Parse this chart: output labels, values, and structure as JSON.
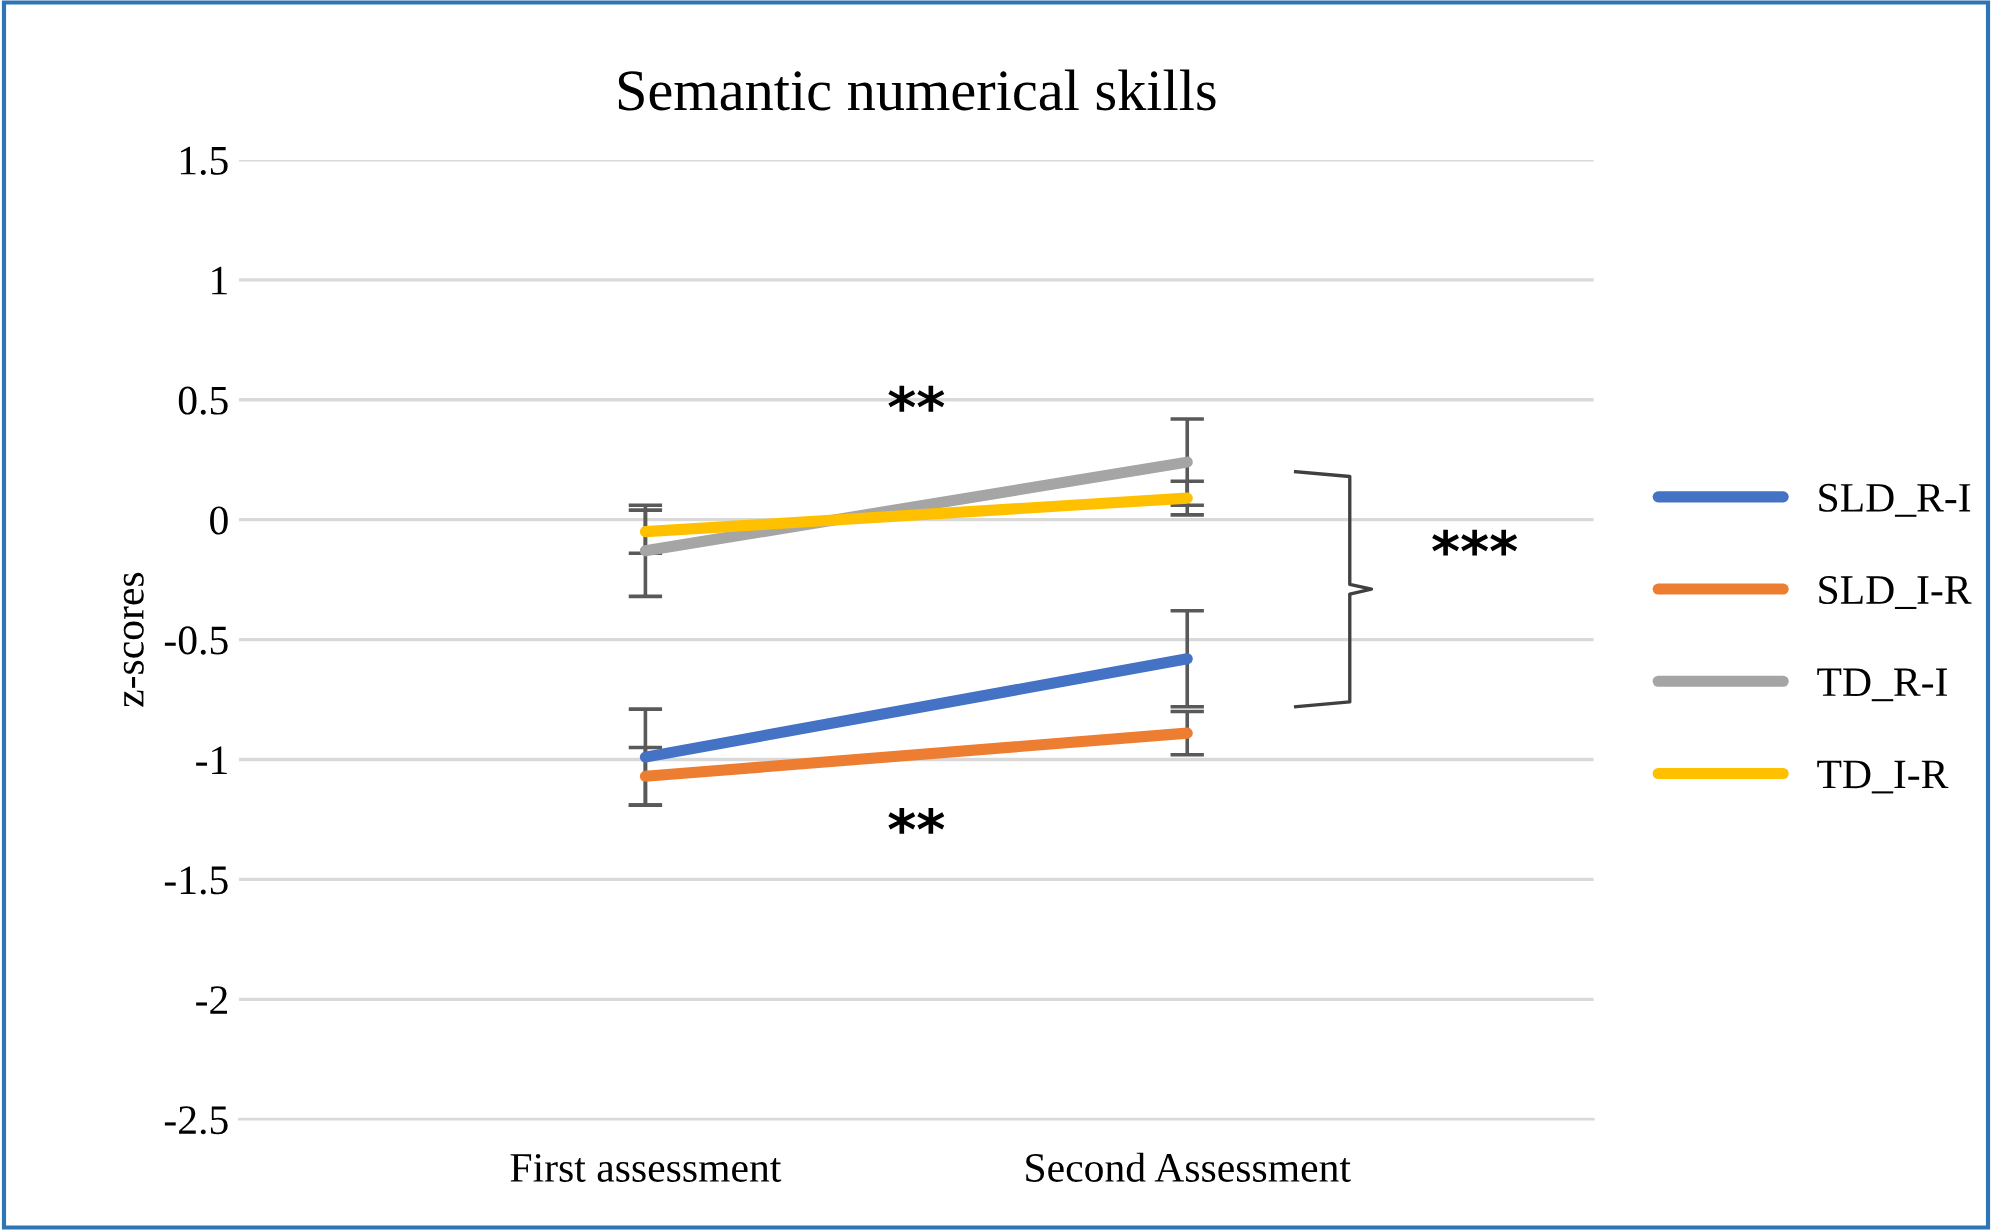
{
  "chart_data": {
    "type": "line",
    "title": "Semantic numerical skills",
    "ylabel": "z-scores",
    "categories": [
      "First assessment",
      "Second Assessment"
    ],
    "series": [
      {
        "name": "SLD_R-I",
        "color": "#4472c4",
        "values": [
          -0.99,
          -0.58
        ],
        "errors": [
          0.2,
          0.2
        ]
      },
      {
        "name": "SLD_I-R",
        "color": "#ed7d31",
        "values": [
          -1.07,
          -0.89
        ],
        "errors": [
          0.12,
          0.09
        ]
      },
      {
        "name": "TD_R-I",
        "color": "#a5a5a5",
        "values": [
          -0.13,
          0.24
        ],
        "errors": [
          0.19,
          0.18
        ]
      },
      {
        "name": "TD_I-R",
        "color": "#ffc000",
        "values": [
          -0.05,
          0.09
        ],
        "errors": [
          0.09,
          0.07
        ]
      }
    ],
    "ylim": [
      -2.5,
      1.5
    ],
    "yticks": [
      -2.5,
      -2,
      -1.5,
      -1,
      -0.5,
      0,
      0.5,
      1,
      1.5
    ],
    "grid": "y",
    "legend": "right",
    "marker": "none",
    "line_style": "solid",
    "annotations": [
      "**",
      "**",
      "***"
    ]
  }
}
